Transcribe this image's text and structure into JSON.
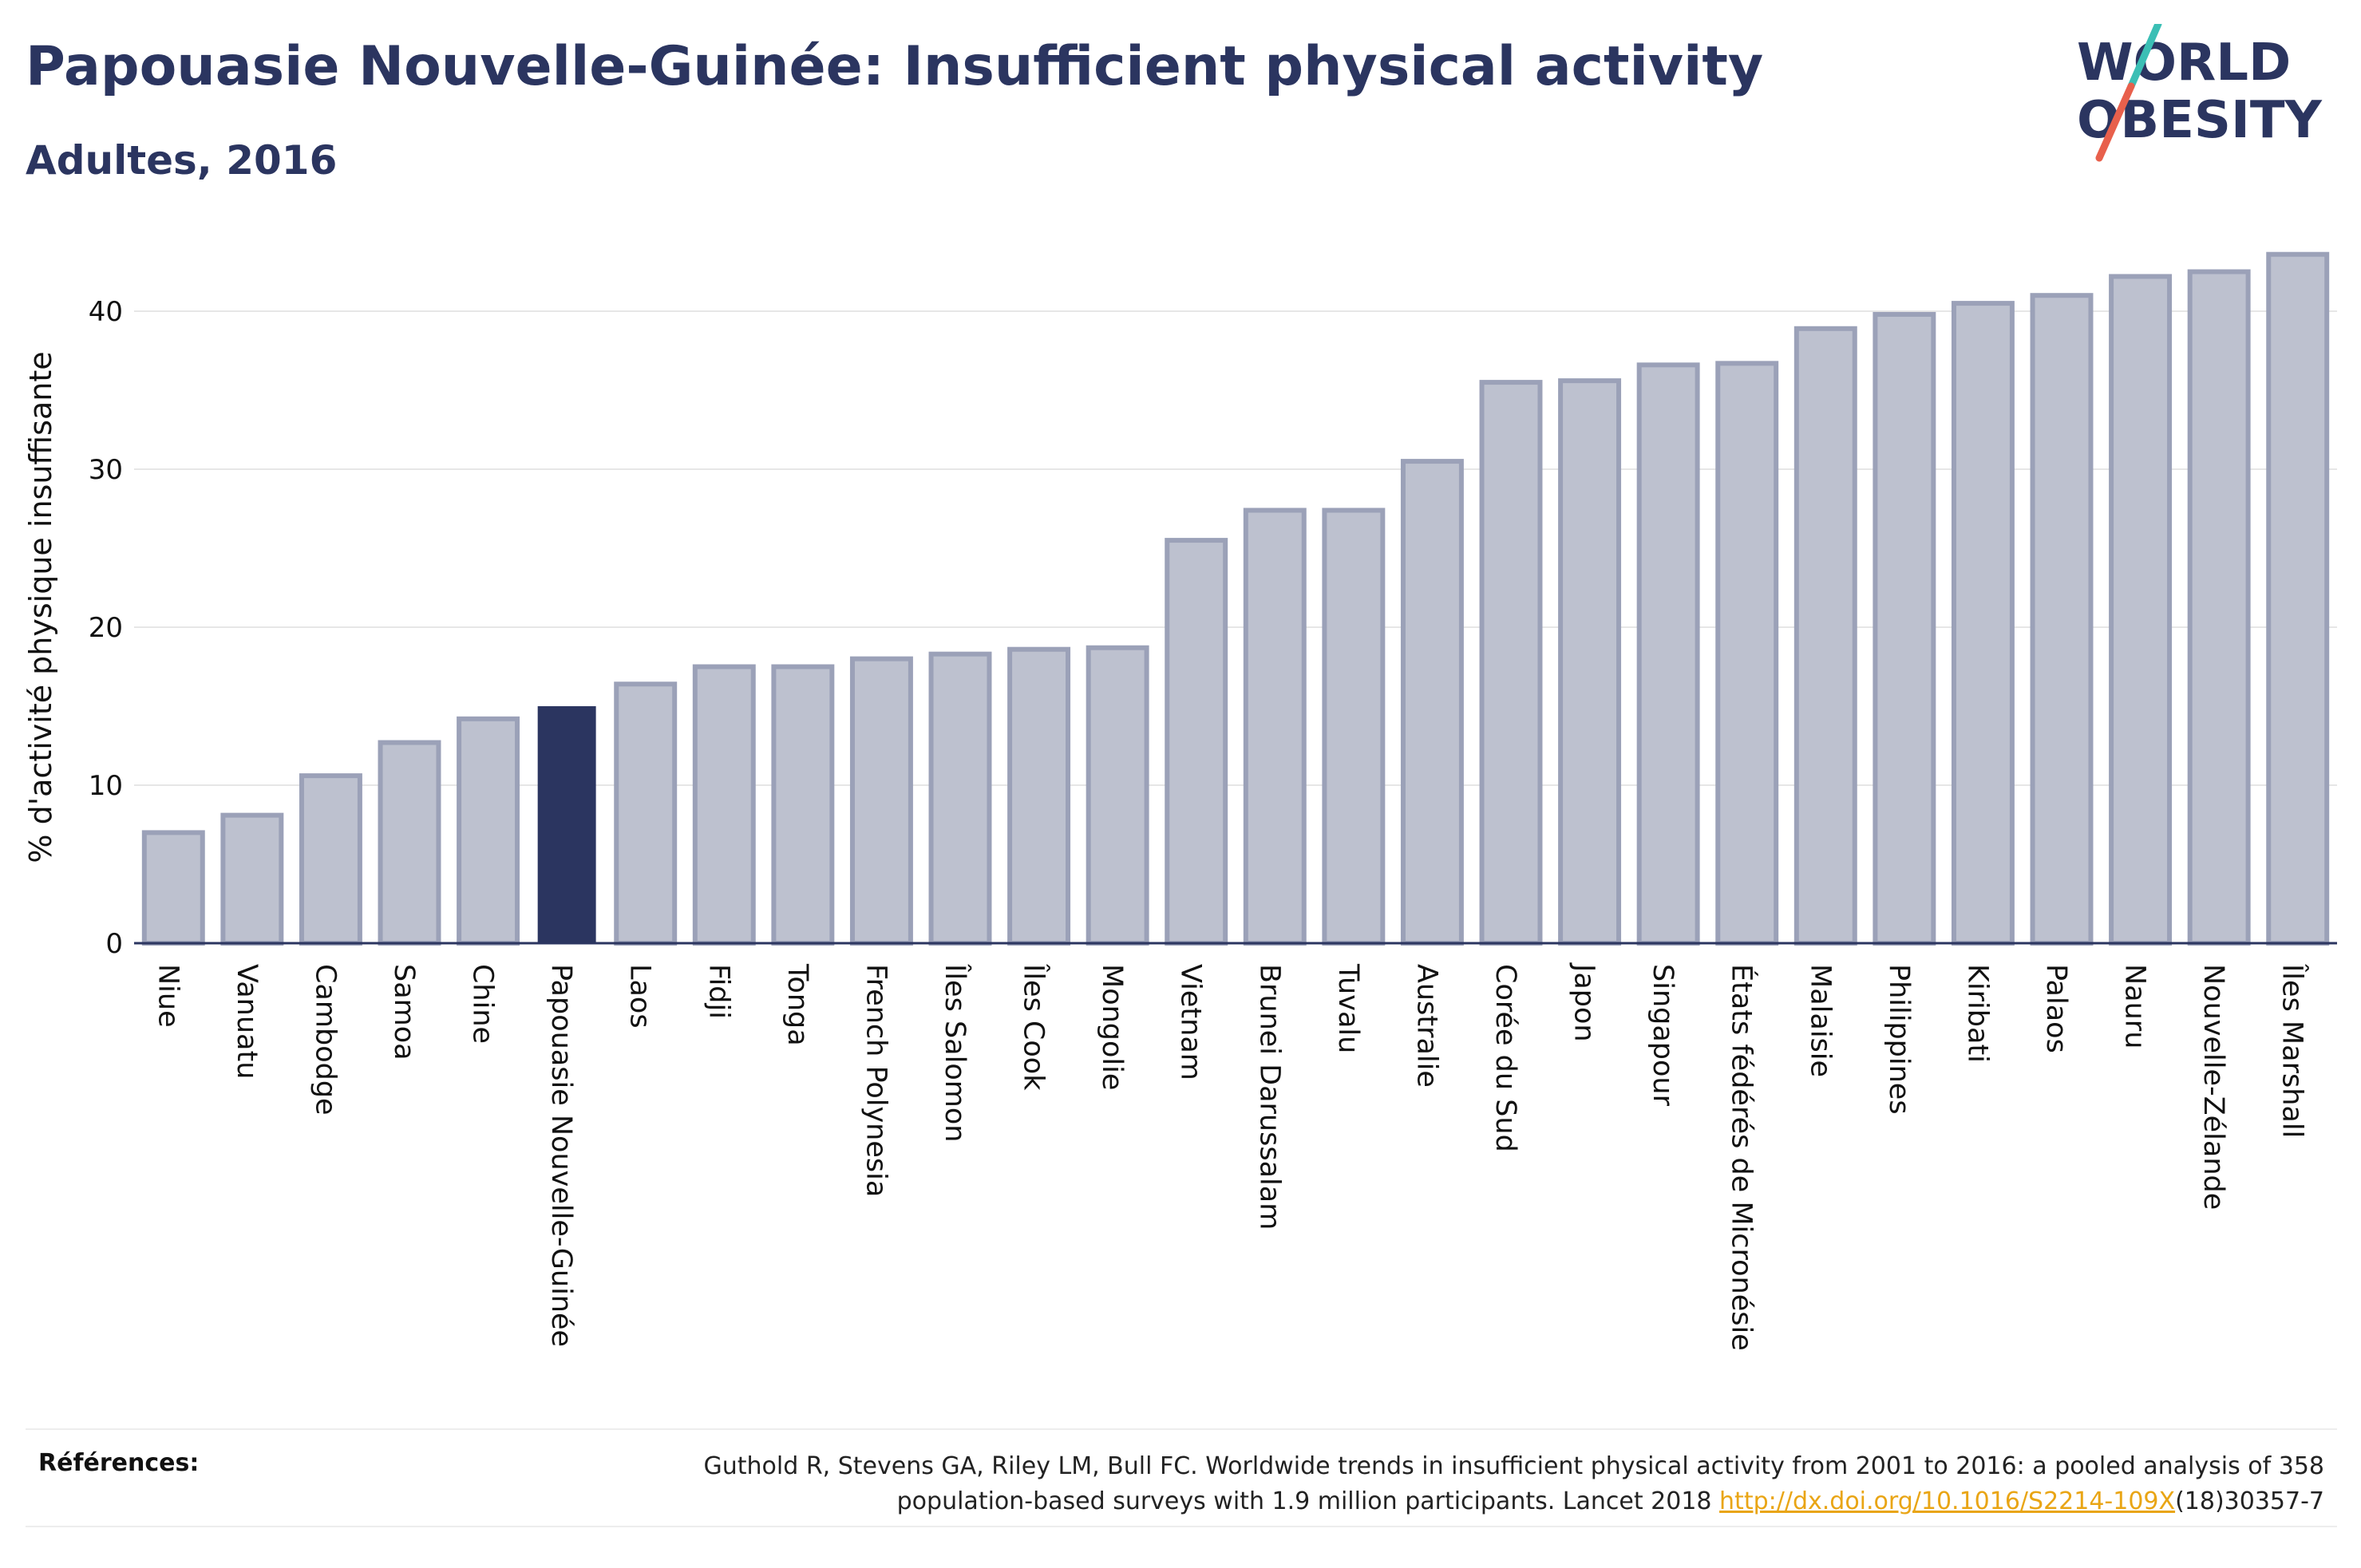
{
  "header": {
    "title": "Papouasie Nouvelle-Guinée: Insufficient physical activity",
    "subtitle": "Adultes, 2016"
  },
  "logo": {
    "line1": "WORLD",
    "line2": "OBESITY",
    "icon": "world-obesity-logo"
  },
  "colors": {
    "highlight": "#2b3560",
    "bar_fill": "#bdc1cf",
    "bar_stroke": "#9ba1b8",
    "accent_teal": "#3bbfb5",
    "accent_coral": "#e8604c",
    "link": "#e9a515"
  },
  "chart_data": {
    "type": "bar",
    "ylabel": "% d'activité physique insuffisante",
    "xlabel": "",
    "ylim": [
      0,
      45
    ],
    "yticks": [
      0,
      10,
      20,
      30,
      40
    ],
    "grid": true,
    "highlight": "Papouasie Nouvelle-Guinée",
    "categories": [
      "Niue",
      "Vanuatu",
      "Cambodge",
      "Samoa",
      "Chine",
      "Papouasie Nouvelle-Guinée",
      "Laos",
      "Fidji",
      "Tonga",
      "French Polynesia",
      "Îles Salomon",
      "Îles Cook",
      "Mongolie",
      "Vietnam",
      "Brunei Darussalam",
      "Tuvalu",
      "Australie",
      "Corée du Sud",
      "Japon",
      "Singapour",
      "États fédérés de Micronésie",
      "Malaisie",
      "Philippines",
      "Kiribati",
      "Palaos",
      "Nauru",
      "Nouvelle-Zélande",
      "Îles Marshall"
    ],
    "values": [
      7.0,
      8.1,
      10.6,
      12.7,
      14.2,
      15.0,
      16.4,
      17.5,
      17.5,
      18.0,
      18.3,
      18.6,
      18.7,
      25.5,
      27.4,
      27.4,
      30.5,
      35.5,
      35.6,
      36.6,
      36.7,
      38.9,
      39.8,
      40.5,
      41.0,
      42.2,
      42.5,
      43.6
    ]
  },
  "references": {
    "label": "Références:",
    "text_before_link": "Guthold R, Stevens GA, Riley LM, Bull FC. Worldwide trends in insufficient physical activity from 2001 to 2016: a pooled analysis of 358 population-based surveys with 1.9 million participants. Lancet 2018 ",
    "link": "http://dx.doi.org/10.1016/S2214-109X",
    "text_after_link": "(18)30357-7"
  }
}
